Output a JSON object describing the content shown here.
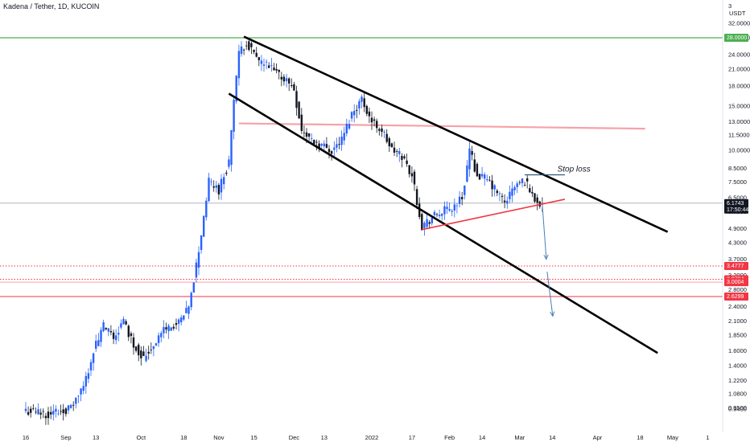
{
  "chart_data": {
    "type": "candlestick",
    "title": "Kadena / Tether, 1D, KUCOIN",
    "currency": "USDT",
    "y_scale": "log",
    "ylim": [
      0.85,
      38
    ],
    "y_ticks": [
      "0.9400",
      "0.9500",
      "1.0800",
      "1.2200",
      "1.4000",
      "1.6000",
      "1.8500",
      "2.1000",
      "2.4000",
      "2.8000",
      "3.2000",
      "3.7000",
      "4.3000",
      "4.9000",
      "5.7000",
      "6.5000",
      "7.5000",
      "8.5000",
      "10.0000",
      "11.5000",
      "13.0000",
      "15.0000",
      "18.0000",
      "21.0000",
      "24.0000",
      "28.0000",
      "32.0000"
    ],
    "y_top_label": "3",
    "x_ticks": [
      "16",
      "Sep",
      "13",
      "Oct",
      "18",
      "Nov",
      "15",
      "Dec",
      "13",
      "2022",
      "17",
      "Feb",
      "14",
      "Mar",
      "14",
      "Apr",
      "18",
      "May",
      "1"
    ],
    "x_tick_dates": [
      "2021-08-16",
      "2021-09-01",
      "2021-09-13",
      "2021-10-01",
      "2021-10-18",
      "2021-11-01",
      "2021-11-15",
      "2021-12-01",
      "2021-12-13",
      "2022-01-01",
      "2022-01-17",
      "2022-02-01",
      "2022-02-14",
      "2022-03-01",
      "2022-03-14",
      "2022-04-01",
      "2022-04-18",
      "2022-05-01",
      "2022-05-15"
    ],
    "price_path": [
      [
        "2021-08-16",
        0.93
      ],
      [
        "2021-08-25",
        0.9
      ],
      [
        "2021-09-03",
        0.95
      ],
      [
        "2021-09-08",
        1.15
      ],
      [
        "2021-09-12",
        1.6
      ],
      [
        "2021-09-16",
        2.0
      ],
      [
        "2021-09-20",
        1.8
      ],
      [
        "2021-09-24",
        2.1
      ],
      [
        "2021-09-28",
        1.7
      ],
      [
        "2021-10-02",
        1.5
      ],
      [
        "2021-10-06",
        1.7
      ],
      [
        "2021-10-10",
        1.95
      ],
      [
        "2021-10-16",
        2.05
      ],
      [
        "2021-10-20",
        2.35
      ],
      [
        "2021-10-24",
        4.0
      ],
      [
        "2021-10-28",
        7.5
      ],
      [
        "2021-11-01",
        7.0
      ],
      [
        "2021-11-05",
        9.0
      ],
      [
        "2021-11-07",
        16.0
      ],
      [
        "2021-11-09",
        24.0
      ],
      [
        "2021-11-12",
        27.0
      ],
      [
        "2021-11-16",
        23.0
      ],
      [
        "2021-11-22",
        21.0
      ],
      [
        "2021-11-28",
        19.0
      ],
      [
        "2021-12-01",
        17.5
      ],
      [
        "2021-12-04",
        12.0
      ],
      [
        "2021-12-08",
        11.0
      ],
      [
        "2021-12-12",
        10.5
      ],
      [
        "2021-12-16",
        10.0
      ],
      [
        "2021-12-20",
        11.0
      ],
      [
        "2021-12-24",
        14.0
      ],
      [
        "2021-12-28",
        16.0
      ],
      [
        "2022-01-01",
        13.0
      ],
      [
        "2022-01-05",
        12.0
      ],
      [
        "2022-01-09",
        10.0
      ],
      [
        "2022-01-13",
        9.5
      ],
      [
        "2022-01-17",
        8.0
      ],
      [
        "2022-01-21",
        5.0
      ],
      [
        "2022-01-25",
        5.4
      ],
      [
        "2022-01-29",
        5.7
      ],
      [
        "2022-02-02",
        5.9
      ],
      [
        "2022-02-06",
        6.5
      ],
      [
        "2022-02-09",
        10.0
      ],
      [
        "2022-02-12",
        8.0
      ],
      [
        "2022-02-16",
        7.6
      ],
      [
        "2022-02-19",
        7.0
      ],
      [
        "2022-02-23",
        6.2
      ],
      [
        "2022-02-27",
        7.2
      ],
      [
        "2022-03-03",
        7.6
      ],
      [
        "2022-03-07",
        6.4
      ],
      [
        "2022-03-10",
        6.17
      ]
    ],
    "last_price": "6.1743",
    "countdown": "17:50:44",
    "levels": [
      {
        "price": 28.0,
        "color": "#4caf50",
        "style": "solid",
        "label": "28.0000"
      },
      {
        "price": 6.1743,
        "color": "#b2b5be",
        "style": "solid"
      },
      {
        "price": 3.4777,
        "color": "#f23645",
        "style": "dotted",
        "label": "3.4777"
      },
      {
        "price": 3.0794,
        "color": "#f23645",
        "style": "dotted",
        "label": "3.0794"
      },
      {
        "price": 3.0004,
        "color": "#f7a1a8",
        "style": "solid",
        "label": "3.0004"
      },
      {
        "price": 2.6299,
        "color": "#f23645",
        "style": "solid",
        "label": "2.6299"
      }
    ],
    "annotations": [
      {
        "text": "Stop loss"
      }
    ],
    "colors": {
      "up": "#2962ff",
      "down": "#131722",
      "channel": "#000000",
      "resistance": "#f7a1a8",
      "trendline": "#f23645",
      "arrow": "#4a7fb5",
      "price_badge": "#131722",
      "level_badge": "#f23645",
      "green_badge": "#4caf50"
    },
    "grid": false,
    "legend": "none"
  }
}
